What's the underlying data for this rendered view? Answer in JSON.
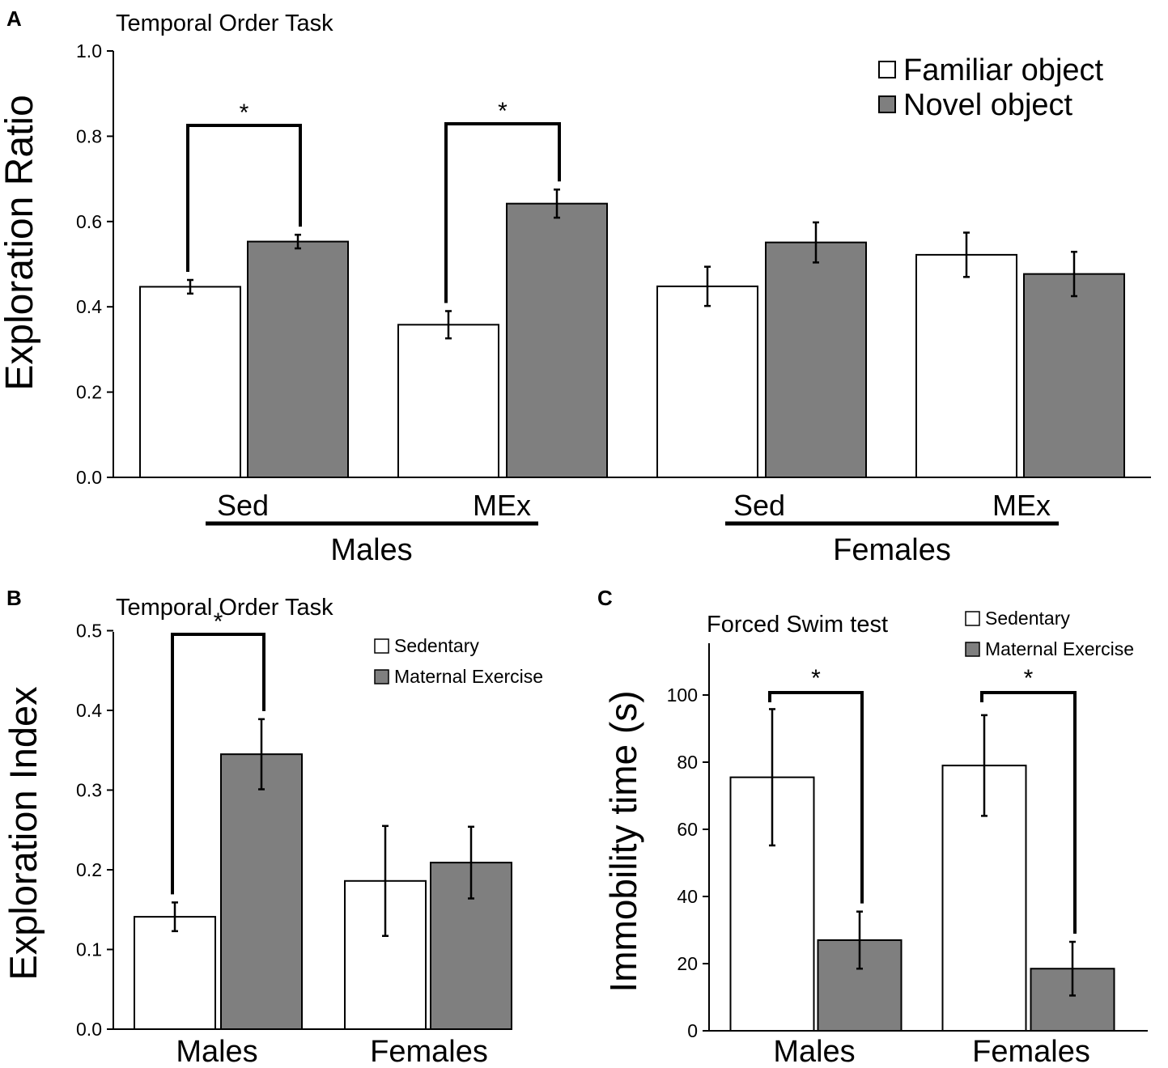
{
  "colors": {
    "familiar": "#ffffff",
    "novel": "#7f7f7f",
    "outline": "#000000"
  },
  "chart_data": [
    {
      "panel": "A",
      "type": "bar",
      "title": "Temporal Order Task",
      "ylabel": "Exploration Ratio",
      "ylim": [
        0,
        1.0
      ],
      "yticks": [
        "0.0",
        "0.2",
        "0.4",
        "0.6",
        "0.8",
        "1.0"
      ],
      "categories": [
        "Sed",
        "MEx",
        "Sed",
        "MEx"
      ],
      "groups": [
        {
          "label": "Males",
          "members": [
            0,
            1
          ]
        },
        {
          "label": "Females",
          "members": [
            2,
            3
          ]
        }
      ],
      "series": [
        {
          "name": "Familiar object",
          "color": "#ffffff",
          "values": [
            0.447,
            0.358,
            0.448,
            0.522
          ],
          "errors": [
            0.016,
            0.032,
            0.046,
            0.052
          ]
        },
        {
          "name": "Novel object",
          "color": "#7f7f7f",
          "values": [
            0.553,
            0.642,
            0.551,
            0.477
          ],
          "errors": [
            0.016,
            0.033,
            0.047,
            0.052
          ]
        }
      ],
      "significance": [
        {
          "category": 0,
          "label": "*"
        },
        {
          "category": 1,
          "label": "*"
        }
      ],
      "legend": "top-right"
    },
    {
      "panel": "B",
      "type": "bar",
      "title": "Temporal Order Task",
      "ylabel": "Exploration Index",
      "ylim": [
        0,
        0.5
      ],
      "yticks": [
        "0.0",
        "0.1",
        "0.2",
        "0.3",
        "0.4",
        "0.5"
      ],
      "categories": [
        "Males",
        "Females"
      ],
      "series": [
        {
          "name": "Sedentary",
          "color": "#ffffff",
          "values": [
            0.141,
            0.186
          ],
          "errors": [
            0.018,
            0.069
          ]
        },
        {
          "name": "Maternal Exercise",
          "color": "#7f7f7f",
          "values": [
            0.345,
            0.209
          ],
          "errors": [
            0.044,
            0.045
          ]
        }
      ],
      "significance": [
        {
          "category": 0,
          "label": "*"
        }
      ],
      "legend": "top-right"
    },
    {
      "panel": "C",
      "type": "bar",
      "title": "Forced Swim test",
      "ylabel": "Immobility time (s)",
      "ylim": [
        0,
        115
      ],
      "yticks": [
        "0",
        "20",
        "40",
        "60",
        "80",
        "100"
      ],
      "categories": [
        "Males",
        "Females"
      ],
      "series": [
        {
          "name": "Sedentary",
          "color": "#ffffff",
          "values": [
            75.5,
            79
          ],
          "errors": [
            20.3,
            15
          ]
        },
        {
          "name": "Maternal Exercise",
          "color": "#7f7f7f",
          "values": [
            27,
            18.5
          ],
          "errors": [
            8.5,
            8
          ]
        }
      ],
      "significance": [
        {
          "category": 0,
          "label": "*"
        },
        {
          "category": 1,
          "label": "*"
        }
      ],
      "legend": "top-right"
    }
  ]
}
